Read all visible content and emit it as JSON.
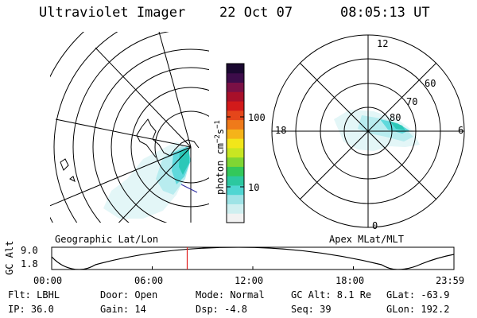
{
  "header": {
    "title": "Ultraviolet Imager",
    "date": "22 Oct 07",
    "time": "08:05:13 UT"
  },
  "colorbar": {
    "label_main": "photon cm",
    "label_sup1": "−2",
    "label_mid": "s",
    "label_sup2": "−1",
    "tick_100": "100",
    "tick_10": "10",
    "colors": [
      "#f2f2f2",
      "#cfeff0",
      "#9ee3e6",
      "#4fd6d2",
      "#2cc8a0",
      "#33c85a",
      "#7fd633",
      "#c8e622",
      "#f2e61a",
      "#f5b319",
      "#ef7a1a",
      "#e5461a",
      "#d21a1a",
      "#a8102a",
      "#7a1045",
      "#3d0c4a",
      "#1a0830"
    ]
  },
  "left_map": {
    "label": "Geographic Lat/Lon"
  },
  "right_map": {
    "label": "Apex MLat/MLT",
    "mlt_top": "12",
    "mlt_left": "18",
    "mlt_right": "6",
    "mlt_bottom": "0",
    "lat_60": "60",
    "lat_70": "70",
    "lat_80": "80"
  },
  "altitude_plot": {
    "ylabel": "GC Alt",
    "y_top": "9.0",
    "y_bottom": "1.8",
    "x_ticks": [
      "00:00",
      "06:00",
      "12:00",
      "18:00",
      "23:59"
    ],
    "current_time_fraction": 0.337,
    "marker_color": "#e02020"
  },
  "info": {
    "filter": "Flt: LBHL",
    "ip": "IP: 36.0",
    "door": "Door: Open",
    "gain": "Gain: 14",
    "mode": "Mode: Normal",
    "dsp": "Dsp:   -4.8",
    "gc_alt": "GC Alt: 8.1 Re",
    "seq": "Seq: 39",
    "glat": "GLat: -63.9",
    "glon": "GLon: 192.2"
  }
}
